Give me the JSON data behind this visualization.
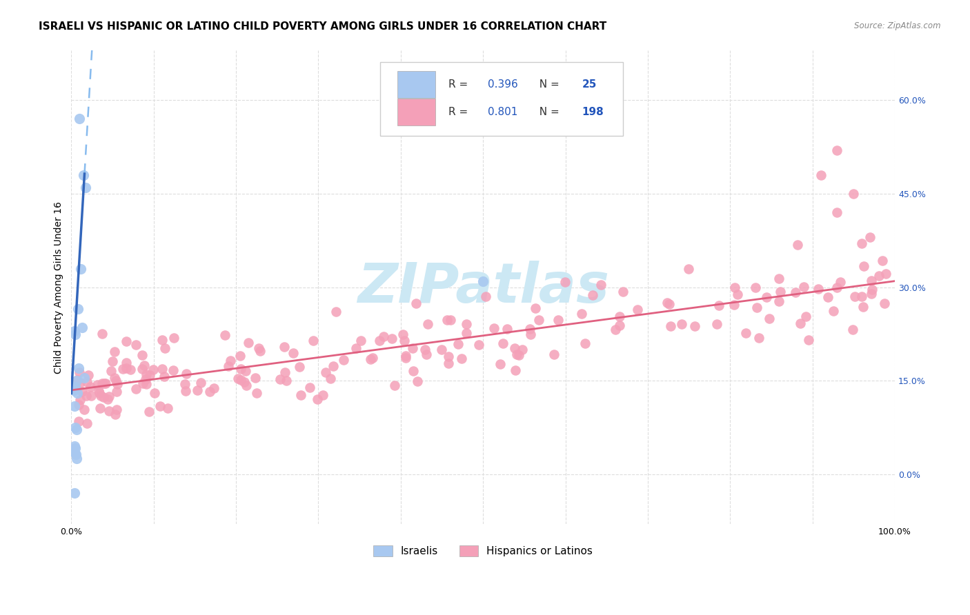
{
  "title": "ISRAELI VS HISPANIC OR LATINO CHILD POVERTY AMONG GIRLS UNDER 16 CORRELATION CHART",
  "source": "Source: ZipAtlas.com",
  "ylabel": "Child Poverty Among Girls Under 16",
  "xlim": [
    0,
    100
  ],
  "ylim": [
    -8,
    68
  ],
  "yticks": [
    0,
    15,
    30,
    45,
    60
  ],
  "ytick_labels": [
    "0.0%",
    "15.0%",
    "30.0%",
    "45.0%",
    "60.0%"
  ],
  "xticks": [
    0,
    10,
    20,
    30,
    40,
    50,
    60,
    70,
    80,
    90,
    100
  ],
  "xtick_labels": [
    "0.0%",
    "",
    "",
    "",
    "",
    "",
    "",
    "",
    "",
    "",
    "100.0%"
  ],
  "israelis_R": 0.396,
  "israelis_N": 25,
  "hispanics_R": 0.801,
  "hispanics_N": 198,
  "israeli_color": "#a8c8f0",
  "hispanic_color": "#f4a0b8",
  "israeli_line_solid_color": "#3366bb",
  "israeli_line_dash_color": "#88bbee",
  "hispanic_line_color": "#e06080",
  "legend_color": "#2255bb",
  "background_color": "#ffffff",
  "grid_color": "#dddddd",
  "watermark_color": "#cce8f4",
  "title_fontsize": 11,
  "axis_label_fontsize": 10,
  "tick_fontsize": 9,
  "isr_intercept": 13.0,
  "isr_slope": 22.0,
  "hisp_intercept": 13.5,
  "hisp_slope": 0.175
}
